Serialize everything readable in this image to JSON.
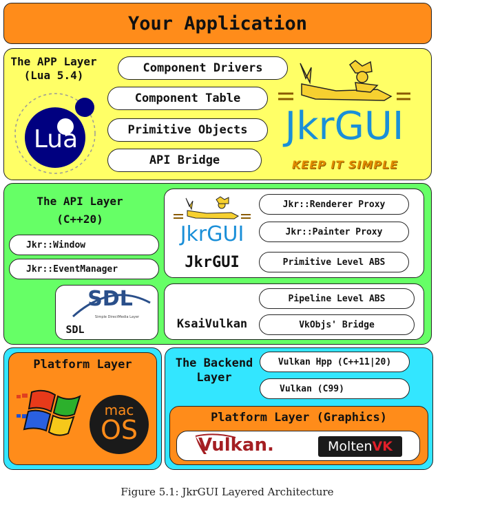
{
  "title": "Your Application",
  "app_layer": {
    "label": "The APP Layer\n(Lua 5.4)",
    "items": [
      "Component Drivers",
      "Component Table",
      "Primitive Objects",
      "API Bridge"
    ],
    "lua_logo_text": "Lua",
    "jkrgui_wordmark": "JkrGUI",
    "tagline": "KEEP IT SIMPLE"
  },
  "api_layer": {
    "label": "The API Layer\n(C++20)",
    "items": [
      "Jkr::Window",
      "Jkr::EventManager"
    ],
    "jkrgui_box": {
      "logo_text": "JkrGUI",
      "label": "JkrGUI",
      "items": [
        "Jkr::Renderer Proxy",
        "Jkr::Painter Proxy",
        "Primitive Level ABS"
      ]
    },
    "sdl_box": {
      "logo_text": "SDL",
      "logo_subtext": "Simple DirectMedia Layer",
      "label": "SDL"
    },
    "ksai_box": {
      "label": "KsaiVulkan",
      "items": [
        "Pipeline Level ABS",
        "VkObjs' Bridge"
      ]
    }
  },
  "platform_layer": {
    "label": "Platform Layer",
    "macos_text_1": "mac",
    "macos_text_2": "OS"
  },
  "backend_layer": {
    "label": "The Backend\nLayer",
    "items": [
      "Vulkan Hpp (C++11|20)",
      "Vulkan (C99)"
    ],
    "graphics": {
      "label": "Platform Layer (Graphics)",
      "vulkan_logo": "Vulkan.",
      "moltenvk_1": "Molten",
      "moltenvk_2": "VK"
    }
  },
  "caption": "Figure 5.1: JkrGUI Layered Architecture",
  "colors": {
    "orange": "#ff8c1a",
    "yellow": "#ffff66",
    "green": "#66ff66",
    "cyan": "#33e6ff",
    "lua_blue": "#000080",
    "jkr_blue": "#1a8fd8",
    "jkr_gold": "#e08a00"
  }
}
